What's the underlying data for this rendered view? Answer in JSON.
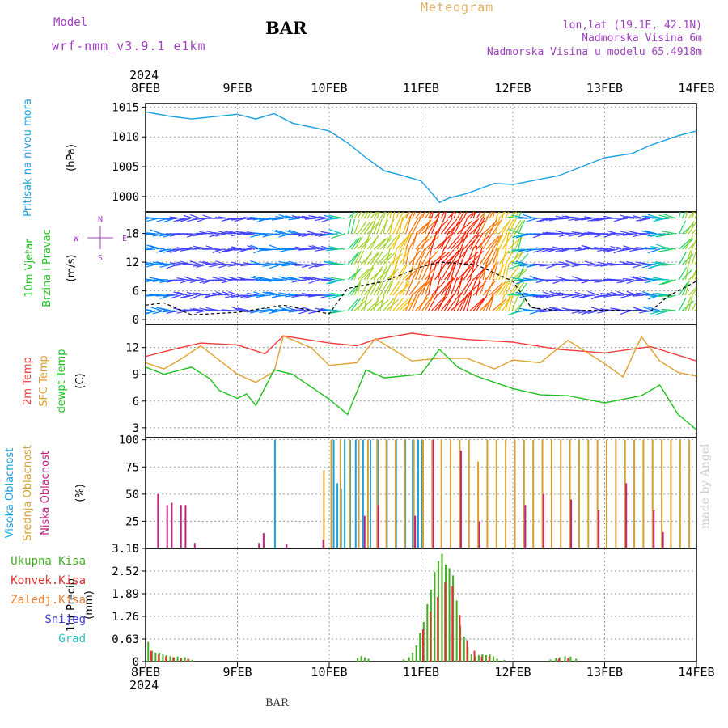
{
  "header": {
    "model_label": "Model",
    "model_name": "wrf-nmm_v3.9.1 e1km",
    "station": "BAR",
    "chart_title": "Meteogram",
    "location": "lon,lat (19.1E, 42.1N)",
    "altitude": "Nadmorska Visina 6m",
    "model_altitude": "Nadmorska Visina u modelu 65.4918m",
    "year": "2024",
    "footer_station": "BAR",
    "credit": "made by Angel"
  },
  "colors": {
    "pressure": "#1aa0e0",
    "temp2m": "#f03c3c",
    "sfc_temp": "#e0a030",
    "dewpt": "#20c020",
    "high_cloud": "#1aa0e0",
    "mid_cloud": "#d8a030",
    "low_cloud": "#c02080",
    "total_precip": "#40b020",
    "conv_precip": "#e03030",
    "frz_precip": "#f08030",
    "snow": "#4040e0",
    "hail": "#20c0c0",
    "purple_label": "#a040c0"
  },
  "chart_data": [
    {
      "type": "line",
      "panel": "pressure",
      "ylabel_lines": [
        "Pritisak na nivou mora",
        "(hPa)"
      ],
      "x_ticks": [
        "8FEB",
        "9FEB",
        "10FEB",
        "11FEB",
        "12FEB",
        "13FEB",
        "14FEB"
      ],
      "ylim": [
        997.4,
        1015.6
      ],
      "y_ticks": [
        "1015",
        "1010",
        "1005",
        "1000"
      ],
      "y_tick_values": [
        1015,
        1010,
        1005,
        1000
      ],
      "series": [
        {
          "color_key": "pressure",
          "x": [
            0,
            0.25,
            0.5,
            1,
            1.2,
            1.4,
            1.6,
            2,
            2.2,
            2.4,
            2.6,
            2.8,
            3,
            3.15,
            3.2,
            3.3,
            3.5,
            3.8,
            4,
            4.5,
            5,
            5.3,
            5.5,
            5.8,
            6
          ],
          "values": [
            1014.2,
            1013.5,
            1013.0,
            1013.8,
            1013.0,
            1013.9,
            1012.3,
            1011.0,
            1009.0,
            1006.5,
            1004.3,
            1003.5,
            1002.6,
            1000.0,
            999.0,
            999.7,
            1000.5,
            1002.2,
            1002.0,
            1003.5,
            1006.5,
            1007.2,
            1008.6,
            1010.2,
            1011.0
          ]
        }
      ],
      "grid": true
    },
    {
      "type": "barbs",
      "panel": "wind",
      "ylabel_lines": [
        "10m Vjetar",
        "Brzina i Pravac",
        "(m/s)"
      ],
      "compass": {
        "n": "N",
        "w": "W",
        "e": "E",
        "s": "S"
      },
      "ylim": [
        -1,
        22.5
      ],
      "y_ticks": [
        "18",
        "12",
        "6",
        "0"
      ],
      "y_tick_values": [
        18,
        12,
        6,
        0
      ],
      "series": [
        {
          "name_key": "speed",
          "x": [
            0,
            0.2,
            0.5,
            1,
            1.5,
            2,
            2.2,
            2.6,
            3,
            3.2,
            3.6,
            4,
            4.2,
            4.5,
            5,
            5.5,
            5.7,
            6
          ],
          "values": [
            3.0,
            3.5,
            1.0,
            1.5,
            3.0,
            1.2,
            6.5,
            8.0,
            11.0,
            12.0,
            11.5,
            8.0,
            2.5,
            1.8,
            2.0,
            1.8,
            5.0,
            8.0
          ]
        }
      ],
      "grid": true
    },
    {
      "type": "line",
      "panel": "temperature",
      "ylabel_lines": [
        "2m Temp",
        "SFC Temp",
        "dewpt Temp",
        "(C)"
      ],
      "ylim": [
        1.9,
        14.6
      ],
      "y_ticks": [
        "12",
        "9",
        "6",
        "3"
      ],
      "y_tick_values": [
        12,
        9,
        6,
        3
      ],
      "series": [
        {
          "name_key": "temp2m",
          "color_key": "temp2m",
          "x": [
            0,
            0.3,
            0.6,
            1,
            1.3,
            1.5,
            2,
            2.3,
            2.5,
            2.9,
            3.2,
            3.5,
            4,
            4.5,
            5,
            5.5,
            6
          ],
          "values": [
            11.0,
            11.8,
            12.5,
            12.3,
            11.3,
            13.3,
            12.5,
            12.2,
            12.9,
            13.6,
            13.2,
            12.9,
            12.6,
            11.8,
            11.4,
            12.1,
            10.5
          ]
        },
        {
          "name_key": "sfc_temp",
          "color_key": "sfc_temp",
          "x": [
            0,
            0.2,
            0.4,
            0.6,
            1,
            1.2,
            1.4,
            1.5,
            1.8,
            2,
            2.3,
            2.5,
            2.9,
            3.2,
            3.5,
            3.8,
            4,
            4.3,
            4.6,
            5,
            5.2,
            5.4,
            5.6,
            5.8,
            6
          ],
          "values": [
            10.3,
            9.6,
            10.8,
            12.2,
            9.0,
            8.1,
            9.3,
            13.3,
            12.0,
            10.0,
            10.3,
            13.0,
            10.5,
            10.8,
            10.8,
            9.6,
            10.6,
            10.3,
            12.8,
            10.2,
            8.7,
            13.2,
            10.5,
            9.2,
            8.8
          ]
        },
        {
          "name_key": "dewpt",
          "color_key": "dewpt",
          "x": [
            0,
            0.2,
            0.5,
            0.7,
            0.8,
            1,
            1.1,
            1.2,
            1.4,
            1.6,
            2,
            2.2,
            2.4,
            2.6,
            3,
            3.2,
            3.4,
            3.6,
            4,
            4.3,
            4.6,
            5,
            5.4,
            5.6,
            5.8,
            6
          ],
          "values": [
            9.8,
            9.0,
            9.8,
            8.5,
            7.2,
            6.3,
            6.8,
            5.5,
            9.5,
            9.0,
            6.2,
            4.5,
            9.5,
            8.6,
            9.0,
            11.8,
            9.8,
            8.8,
            7.4,
            6.7,
            6.6,
            5.8,
            6.6,
            7.8,
            4.5,
            2.8
          ]
        }
      ],
      "grid": true
    },
    {
      "type": "bar",
      "panel": "cloud",
      "ylabel_lines": [
        "Visoka Oblacnost",
        "Srednja Oblacnost",
        "Niska Oblacnost",
        "(%)"
      ],
      "ylim": [
        0,
        102
      ],
      "y_ticks": [
        "100",
        "75",
        "50",
        "25",
        "0"
      ],
      "y_tick_values": [
        100,
        75,
        50,
        25,
        0
      ],
      "series": [
        {
          "name_key": "high_cloud",
          "color_key": "high_cloud",
          "x": [
            1.4,
            2.04,
            2.08,
            2.12,
            2.16,
            2.22,
            2.28,
            2.36,
            2.44,
            2.52,
            2.62,
            2.72,
            2.82,
            2.9,
            2.96,
            3.0
          ],
          "values": [
            100,
            100,
            60,
            55,
            100,
            100,
            100,
            100,
            100,
            100,
            100,
            100,
            100,
            100,
            100,
            100
          ]
        },
        {
          "name_key": "mid_cloud",
          "color_key": "mid_cloud",
          "x": [
            1.92,
            2.0,
            2.1,
            2.2,
            2.3,
            2.4,
            2.5,
            2.6,
            2.7,
            2.8,
            2.9,
            3.0,
            3.1,
            3.2,
            3.3,
            3.4,
            3.5,
            3.6,
            3.7,
            3.8,
            3.9,
            4.0,
            4.1,
            4.2,
            4.3,
            4.4,
            4.5,
            4.6,
            4.7,
            4.8,
            4.9,
            5.0,
            5.1,
            5.2,
            5.3,
            5.4,
            5.5,
            5.6,
            5.7,
            5.8,
            5.9,
            6.0
          ],
          "values": [
            72,
            100,
            100,
            100,
            100,
            100,
            100,
            100,
            100,
            100,
            100,
            100,
            100,
            100,
            100,
            100,
            100,
            80,
            100,
            100,
            100,
            100,
            100,
            100,
            100,
            100,
            100,
            100,
            100,
            100,
            100,
            100,
            100,
            100,
            100,
            100,
            100,
            100,
            100,
            100,
            100,
            100
          ]
        },
        {
          "name_key": "low_cloud",
          "color_key": "low_cloud",
          "x": [
            0.1,
            0.2,
            0.25,
            0.35,
            0.4,
            0.5,
            1.2,
            1.25,
            1.5,
            1.9,
            2.35,
            2.5,
            2.9,
            3.1,
            3.4,
            3.6,
            4.1,
            4.3,
            4.6,
            4.9,
            5.2,
            5.5,
            5.6
          ],
          "values": [
            50,
            40,
            42,
            40,
            40,
            5,
            5,
            14,
            4,
            8,
            30,
            40,
            30,
            100,
            90,
            25,
            40,
            50,
            45,
            35,
            60,
            35,
            15
          ]
        }
      ],
      "grid": true
    },
    {
      "type": "bar",
      "panel": "precip",
      "ylabel_lines": [
        "1hr Precip",
        "(mm)"
      ],
      "ylim": [
        0,
        3.15
      ],
      "y_ticks": [
        "3.15",
        "2.52",
        "1.89",
        "1.26",
        "0.63",
        "0"
      ],
      "y_tick_values": [
        3.15,
        2.52,
        1.89,
        1.26,
        0.63,
        0
      ],
      "legend": [
        "Ukupna Kisa",
        "Konvek.Kisa",
        "Zaledj.Kisa",
        "Snijeg",
        "Grad"
      ],
      "legend_color_keys": [
        "total_precip",
        "conv_precip",
        "frz_precip",
        "snow",
        "hail"
      ],
      "series": [
        {
          "name_key": "total_precip",
          "color_key": "total_precip",
          "x": [
            0.02,
            0.06,
            0.1,
            0.14,
            0.18,
            0.22,
            0.26,
            0.3,
            0.34,
            0.38,
            0.42,
            0.46,
            0.5,
            2.3,
            2.34,
            2.38,
            2.42,
            2.8,
            2.86,
            2.9,
            2.94,
            2.98,
            3.02,
            3.06,
            3.1,
            3.14,
            3.18,
            3.22,
            3.26,
            3.3,
            3.34,
            3.38,
            3.42,
            3.46,
            3.5,
            3.54,
            3.58,
            3.62,
            3.66,
            3.7,
            3.74,
            3.78,
            3.82,
            3.9,
            4.4,
            4.46,
            4.5,
            4.56,
            4.62,
            4.68
          ],
          "values": [
            0.55,
            0.3,
            0.25,
            0.25,
            0.2,
            0.18,
            0.15,
            0.12,
            0.14,
            0.1,
            0.12,
            0.08,
            0.05,
            0.1,
            0.15,
            0.12,
            0.08,
            0.06,
            0.12,
            0.25,
            0.45,
            0.8,
            1.1,
            1.6,
            2.0,
            2.5,
            2.8,
            3.0,
            2.7,
            2.6,
            2.4,
            1.7,
            1.0,
            0.7,
            0.4,
            0.2,
            0.15,
            0.18,
            0.2,
            0.18,
            0.2,
            0.15,
            0.08,
            0.05,
            0.06,
            0.1,
            0.12,
            0.15,
            0.14,
            0.08
          ]
        },
        {
          "name_key": "conv_precip",
          "color_key": "conv_precip",
          "x": [
            0.04,
            0.12,
            0.2,
            0.28,
            0.36,
            0.44,
            3.0,
            3.08,
            3.16,
            3.24,
            3.32,
            3.4,
            3.48,
            3.56,
            3.64,
            3.72,
            4.48,
            4.58
          ],
          "values": [
            0.3,
            0.2,
            0.15,
            0.12,
            0.1,
            0.08,
            0.9,
            1.4,
            1.8,
            2.2,
            2.1,
            1.3,
            0.6,
            0.3,
            0.15,
            0.15,
            0.08,
            0.1
          ]
        }
      ],
      "grid": true
    }
  ]
}
